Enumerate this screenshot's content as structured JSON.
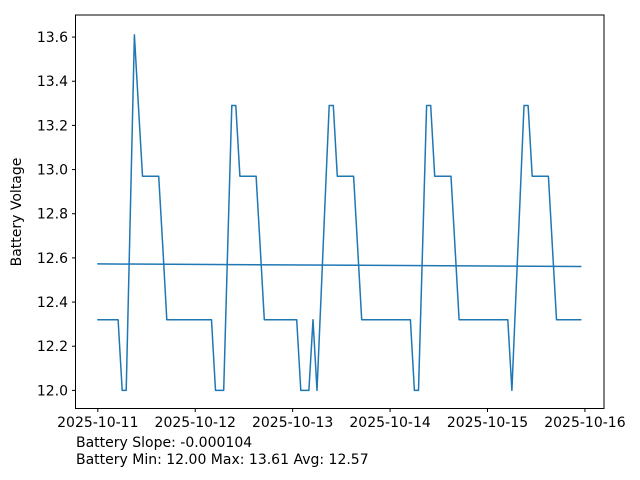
{
  "figure": {
    "ylabel": "Battery Voltage",
    "accent_color": "#1f77b4",
    "stats_line1": "Battery Slope: -0.000104",
    "stats_line2": "Battery Min: 12.00 Max: 13.61 Avg: 12.57"
  },
  "chart_data": {
    "type": "line",
    "title": "",
    "xlabel": "",
    "ylabel": "Battery Voltage",
    "x_unit": "hours since 2025-10-11 00:00",
    "xlim_hours": [
      -5.5,
      124.7
    ],
    "ylim": [
      11.918,
      13.7
    ],
    "grid": false,
    "legend": "none",
    "xticks": [
      {
        "hour": 0,
        "label": "2025-10-11"
      },
      {
        "hour": 24,
        "label": "2025-10-12"
      },
      {
        "hour": 48,
        "label": "2025-10-13"
      },
      {
        "hour": 72,
        "label": "2025-10-14"
      },
      {
        "hour": 96,
        "label": "2025-10-15"
      },
      {
        "hour": 120,
        "label": "2025-10-16"
      }
    ],
    "yticks": [
      12.0,
      12.2,
      12.4,
      12.6,
      12.8,
      13.0,
      13.2,
      13.4,
      13.6
    ],
    "series": [
      {
        "name": "battery-voltage",
        "color": "#1f77b4",
        "start_hour": 0,
        "step_hours": 1,
        "values": [
          12.32,
          12.32,
          12.32,
          12.32,
          12.32,
          12.32,
          12.0,
          12.0,
          12.8,
          13.61,
          13.29,
          12.97,
          12.97,
          12.97,
          12.97,
          12.97,
          12.65,
          12.32,
          12.32,
          12.32,
          12.32,
          12.32,
          12.32,
          12.32,
          12.32,
          12.32,
          12.32,
          12.32,
          12.32,
          12.0,
          12.0,
          12.0,
          12.65,
          13.29,
          13.29,
          12.97,
          12.97,
          12.97,
          12.97,
          12.97,
          12.65,
          12.32,
          12.32,
          12.32,
          12.32,
          12.32,
          12.32,
          12.32,
          12.32,
          12.32,
          12.0,
          12.0,
          12.0,
          12.32,
          12.0,
          12.43,
          12.86,
          13.29,
          13.29,
          12.97,
          12.97,
          12.97,
          12.97,
          12.97,
          12.65,
          12.32,
          12.32,
          12.32,
          12.32,
          12.32,
          12.32,
          12.32,
          12.32,
          12.32,
          12.32,
          12.32,
          12.32,
          12.32,
          12.0,
          12.0,
          12.65,
          13.29,
          13.29,
          12.97,
          12.97,
          12.97,
          12.97,
          12.97,
          12.65,
          12.32,
          12.32,
          12.32,
          12.32,
          12.32,
          12.32,
          12.32,
          12.32,
          12.32,
          12.32,
          12.32,
          12.32,
          12.32,
          12.0,
          12.43,
          12.86,
          13.29,
          13.29,
          12.97,
          12.97,
          12.97,
          12.97,
          12.97,
          12.65,
          12.32,
          12.32,
          12.32,
          12.32,
          12.32,
          12.32,
          12.32
        ]
      },
      {
        "name": "trend-line",
        "color": "#1f77b4",
        "points": [
          [
            0,
            12.573
          ],
          [
            119,
            12.561
          ]
        ]
      }
    ],
    "stats": {
      "slope": -0.000104,
      "min": 12.0,
      "max": 13.61,
      "avg": 12.57
    }
  }
}
